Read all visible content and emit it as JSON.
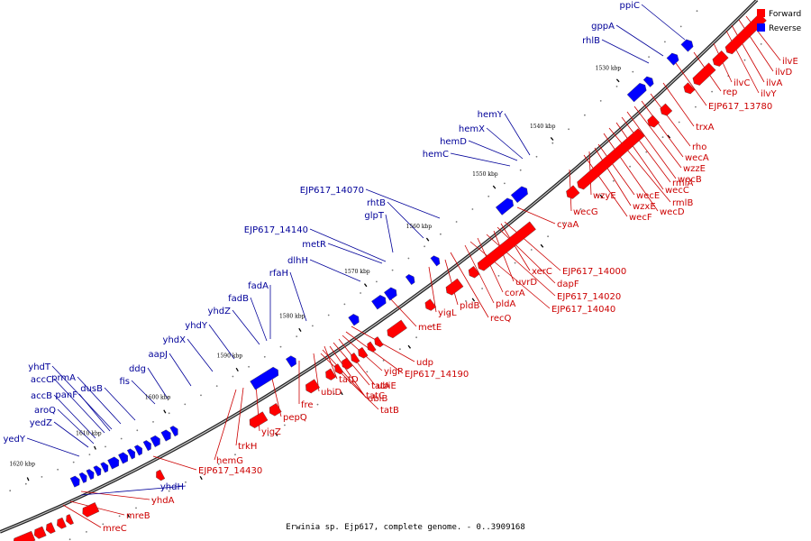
{
  "caption": "Erwinia sp. Ejp617, complete genome. - 0..3909168",
  "legend": [
    {
      "label": "Forward",
      "color": "#ff0000"
    },
    {
      "label": "Reverse",
      "color": "#0000ff"
    }
  ],
  "colors": {
    "forward": "#ff0000",
    "forward_label": "#cc0000",
    "reverse": "#0000ff",
    "reverse_label": "#000099"
  },
  "ticks": [
    "1530 kbp",
    "1540 kbp",
    "1550 kbp",
    "1560 kbp",
    "1570 kbp",
    "1580 kbp",
    "1590 kbp",
    "1600 kbp",
    "1610 kbp",
    "1620 kbp"
  ],
  "genes": {
    "forward": [
      "ilvE",
      "ilvD",
      "ilvA",
      "ilvY",
      "ilvC",
      "rep",
      "EJP617_13780",
      "trxA",
      "rho",
      "wecA",
      "wzzE",
      "wecB",
      "rmlA",
      "wecC",
      "rmlB",
      "wecD",
      "wzyE",
      "wecE",
      "wzxE",
      "wecF",
      "wecG",
      "cyaA",
      "EJP617_14000",
      "xerC",
      "dapF",
      "uvrD",
      "EJP617_14020",
      "corA",
      "EJP617_14040",
      "pldA",
      "recQ",
      "pldB",
      "yigL",
      "metE",
      "udp",
      "EJP617_14190",
      "yigP",
      "ubiE",
      "tatA",
      "ubiB",
      "tatD",
      "tatC",
      "tatB",
      "ubiD",
      "fre",
      "pepQ",
      "yigZ",
      "trkH",
      "hemG",
      "EJP617_14430",
      "yhdA",
      "mreB",
      "mreC"
    ],
    "reverse": [
      "ppiC",
      "gppA",
      "rhlB",
      "hemY",
      "hemX",
      "hemD",
      "hemC",
      "EJP617_14070",
      "rhtB",
      "glpT",
      "EJP617_14140",
      "metR",
      "dlhH",
      "rfaH",
      "fadA",
      "fadB",
      "yhdZ",
      "yhdY",
      "yhdX",
      "aapJ",
      "ddg",
      "fis",
      "dusB",
      "prmA",
      "yhdT",
      "panF",
      "accC",
      "accB",
      "aroQ",
      "yedZ",
      "yedY",
      "yhdH"
    ]
  }
}
